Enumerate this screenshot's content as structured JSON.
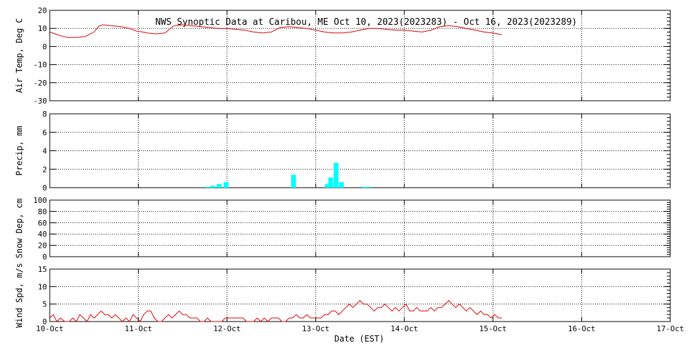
{
  "chart_data": [
    {
      "type": "line",
      "title": "NWS Synoptic Data at Caribou, ME   Oct 10, 2023(2023283) - Oct 16, 2023(2023289)",
      "ylabel": "Air Temp, Deg C",
      "ylim": [
        -30,
        20
      ],
      "yticks": [
        "20",
        "10",
        "0",
        "-10",
        "-20",
        "-30"
      ],
      "grid": true,
      "series": [
        {
          "color": "#dd0000",
          "x": [
            0,
            0.06,
            0.12,
            0.2,
            0.3,
            0.4,
            0.5,
            0.56,
            0.6,
            0.7,
            0.8,
            0.9,
            0.98,
            1.05,
            1.1,
            1.2,
            1.3,
            1.4,
            1.5,
            1.6,
            1.7,
            1.8,
            1.9,
            2.0,
            2.1,
            2.2,
            2.3,
            2.4,
            2.5,
            2.6,
            2.7,
            2.8,
            2.9,
            3.0,
            3.1,
            3.2,
            3.3,
            3.4,
            3.5,
            3.6,
            3.7,
            3.8,
            3.9,
            4.0,
            4.1,
            4.2,
            4.3,
            4.4,
            4.5,
            4.6,
            4.7,
            4.8,
            4.9,
            5.0,
            5.1
          ],
          "values": [
            8,
            7,
            6,
            5,
            5,
            5.5,
            8,
            11.5,
            12,
            11.5,
            11,
            10,
            8.5,
            8,
            7.5,
            7,
            7.5,
            11.5,
            12,
            11.5,
            11,
            10.5,
            10,
            10,
            9.5,
            9,
            8,
            7.5,
            8,
            10.5,
            11,
            10.5,
            10,
            9,
            8,
            7.5,
            7.5,
            8,
            9,
            10,
            10,
            9.5,
            9,
            9,
            8.5,
            8,
            9,
            11,
            11.5,
            11,
            10,
            9,
            8,
            7.5,
            6.5
          ]
        }
      ]
    },
    {
      "type": "bar",
      "ylabel": "Precip, mm",
      "ylim": [
        0,
        8
      ],
      "yticks": [
        "8",
        "6",
        "4",
        "2",
        "0"
      ],
      "grid": true,
      "series": [
        {
          "color": "#00ffff",
          "x": [
            1.78,
            1.84,
            1.91,
            1.99,
            2.75,
            3.13,
            3.17,
            3.23,
            3.29,
            3.55,
            3.6
          ],
          "values": [
            0.1,
            0.2,
            0.4,
            0.6,
            1.4,
            0.4,
            1.1,
            2.7,
            0.6,
            0.1,
            0.1
          ]
        }
      ]
    },
    {
      "type": "line",
      "ylabel": "Snow Dep, cm",
      "ylim": [
        0,
        100
      ],
      "yticks": [
        "100",
        "80",
        "60",
        "40",
        "20",
        "0"
      ],
      "grid": true,
      "series": []
    },
    {
      "type": "line",
      "ylabel": "Wind Spd, m/s",
      "ylim": [
        0,
        15
      ],
      "yticks": [
        "15",
        "10",
        "5",
        "0"
      ],
      "grid": true,
      "series": [
        {
          "color": "#dd0000",
          "x": [
            0,
            0.04,
            0.08,
            0.12,
            0.17,
            0.22,
            0.26,
            0.3,
            0.34,
            0.38,
            0.42,
            0.46,
            0.5,
            0.54,
            0.58,
            0.62,
            0.66,
            0.7,
            0.74,
            0.78,
            0.82,
            0.86,
            0.9,
            0.94,
            0.98,
            1.02,
            1.06,
            1.1,
            1.14,
            1.18,
            1.22,
            1.26,
            1.3,
            1.34,
            1.38,
            1.42,
            1.46,
            1.5,
            1.54,
            1.58,
            1.62,
            1.66,
            1.7,
            1.74,
            1.78,
            1.82,
            1.86,
            1.9,
            1.94,
            1.98,
            2.02,
            2.06,
            2.1,
            2.14,
            2.18,
            2.22,
            2.26,
            2.3,
            2.34,
            2.38,
            2.42,
            2.46,
            2.5,
            2.54,
            2.58,
            2.62,
            2.66,
            2.7,
            2.74,
            2.78,
            2.82,
            2.86,
            2.9,
            2.94,
            2.98,
            3.02,
            3.06,
            3.1,
            3.14,
            3.18,
            3.22,
            3.26,
            3.3,
            3.34,
            3.38,
            3.42,
            3.46,
            3.5,
            3.54,
            3.58,
            3.62,
            3.66,
            3.7,
            3.74,
            3.78,
            3.82,
            3.86,
            3.9,
            3.94,
            3.98,
            4.02,
            4.06,
            4.1,
            4.14,
            4.18,
            4.22,
            4.26,
            4.3,
            4.34,
            4.38,
            4.42,
            4.46,
            4.5,
            4.54,
            4.58,
            4.62,
            4.66,
            4.7,
            4.74,
            4.78,
            4.82,
            4.86,
            4.9,
            4.94,
            4.98,
            5.02,
            5.06,
            5.1
          ],
          "values": [
            1,
            2,
            0,
            1,
            0,
            0,
            1,
            0,
            2,
            1,
            0,
            2,
            1,
            2,
            3,
            2,
            2,
            1,
            2,
            1,
            0,
            1,
            0,
            2,
            1,
            0,
            2,
            3,
            3,
            1,
            0,
            0,
            1,
            2,
            1,
            2,
            3,
            2,
            2,
            1,
            1,
            1,
            0,
            0,
            1,
            0,
            0,
            0,
            0,
            1,
            1,
            1,
            1,
            1,
            1,
            0,
            0,
            0,
            1,
            0,
            1,
            0,
            1,
            1,
            1,
            0,
            0,
            1,
            1,
            2,
            1,
            1,
            2,
            1,
            1,
            1,
            1,
            2,
            2,
            3,
            3,
            2,
            3,
            4,
            5,
            4,
            5,
            6,
            5,
            5,
            4,
            3,
            4,
            4,
            5,
            4,
            3,
            4,
            3,
            4,
            5,
            3,
            3,
            4,
            3,
            3,
            3,
            4,
            3,
            4,
            4,
            5,
            6,
            5,
            4,
            5,
            4,
            3,
            4,
            3,
            2,
            3,
            2,
            2,
            1,
            2,
            1,
            1
          ]
        }
      ]
    }
  ],
  "xaxis": {
    "label": "Date (EST)",
    "xlim": [
      0,
      7
    ],
    "ticks": [
      "10-Oct",
      "11-Oct",
      "12-Oct",
      "13-Oct",
      "14-Oct",
      "15-Oct",
      "16-Oct",
      "17-Oct"
    ]
  }
}
